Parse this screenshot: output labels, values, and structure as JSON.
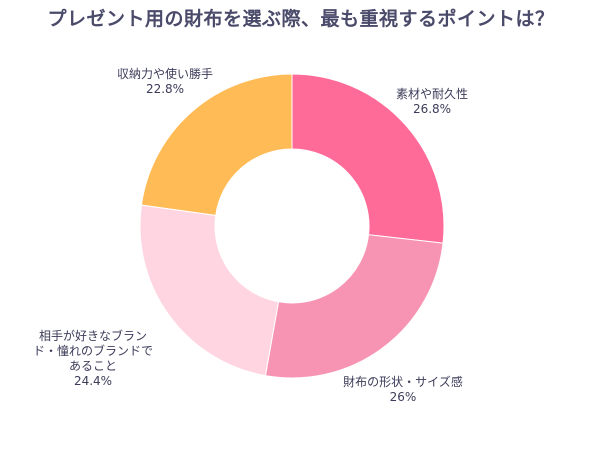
{
  "title": "プレゼント用の財布を選ぶ際、最も重視するポイントは？",
  "chart_data": {
    "type": "pie",
    "donut": true,
    "title": "プレゼント用の財布を選ぶ際、最も重視するポイントは？",
    "slices": [
      {
        "label_lines": [
          "素材や耐久性"
        ],
        "value": 26.8,
        "value_label": "26.8%",
        "color": "#ff6b98"
      },
      {
        "label_lines": [
          "財布の形状・サイズ感"
        ],
        "value": 26,
        "value_label": "26%",
        "color": "#f794b3"
      },
      {
        "label_lines": [
          "相手が好きなブラン",
          "ド・憧れのブランドで",
          "あること"
        ],
        "value": 24.4,
        "value_label": "24.4%",
        "color": "#ffd5e2"
      },
      {
        "label_lines": [
          "収納力や使い勝手"
        ],
        "value": 22.8,
        "value_label": "22.8%",
        "color": "#ffbb55"
      }
    ]
  }
}
